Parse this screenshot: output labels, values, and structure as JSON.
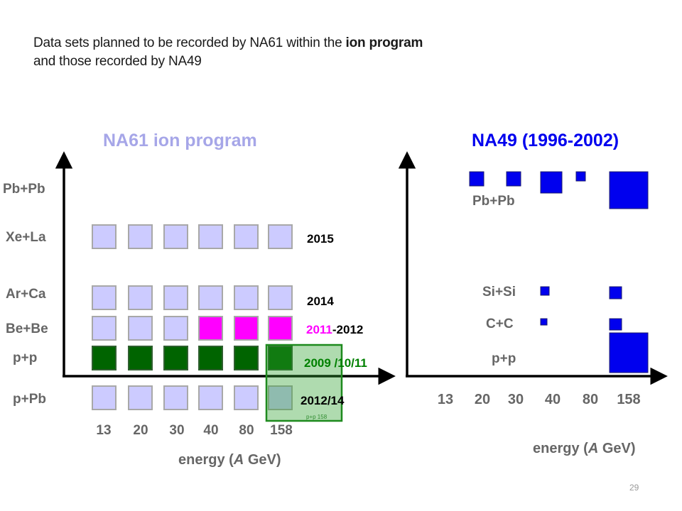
{
  "intro": {
    "line1_prefix": "Data sets planned to be recorded by NA61 within the ",
    "line1_bold": "ion program",
    "line2": "and those recorded by NA49"
  },
  "slide_number": "29",
  "colors": {
    "na61_title": "#a6a6e8",
    "planned_box_fill": "#cccbff",
    "box_border": "#a8a8a8",
    "magenta": "#ff00ff",
    "green": "#006400",
    "green_label": "#008000",
    "highlight_green": "#2e8b2e",
    "na49_blue": "#0000ee",
    "axis": "#000000",
    "label_gray": "#666666"
  },
  "na61": {
    "title": "NA61 ion program",
    "y_labels": [
      "Pb+Pb",
      "Xe+La",
      "Ar+Ca",
      "Be+Be",
      "p+p",
      "p+Pb"
    ],
    "x_labels": [
      "13",
      "20",
      "30",
      "40",
      "80",
      "158"
    ],
    "x_axis_label_prefix": "energy (",
    "x_axis_label_italic": "A",
    "x_axis_label_suffix": " GeV)",
    "rows": [
      {
        "system": "Xe+La",
        "year": "2015",
        "cells": [
          "planned",
          "planned",
          "planned",
          "planned",
          "planned",
          "planned"
        ]
      },
      {
        "system": "Ar+Ca",
        "year": "2014",
        "cells": [
          "planned",
          "planned",
          "planned",
          "planned",
          "planned",
          "planned"
        ]
      },
      {
        "system": "Be+Be",
        "year_part1": "2011",
        "year_part2": "-2012",
        "cells": [
          "planned",
          "planned",
          "planned",
          "magenta",
          "magenta",
          "magenta"
        ]
      },
      {
        "system": "p+p",
        "year": "2009 /10/11",
        "cells": [
          "green",
          "green",
          "green",
          "green",
          "green",
          "green"
        ]
      },
      {
        "system": "p+Pb",
        "year": "2012/14",
        "cells": [
          "planned",
          "planned",
          "planned",
          "planned",
          "planned",
          "planned"
        ]
      }
    ],
    "highlight_label": "p+p 158"
  },
  "na49": {
    "title": "NA49 (1996-2002)",
    "x_labels": [
      "13",
      "20",
      "30",
      "40",
      "80",
      "158"
    ],
    "x_axis_label_prefix": "energy (",
    "x_axis_label_italic": "A",
    "x_axis_label_suffix": " GeV)",
    "system_labels": [
      "Pb+Pb",
      "Si+Si",
      "C+C",
      "p+p"
    ],
    "data_points": [
      {
        "system": "Pb+Pb",
        "energy": "20",
        "size": "medium"
      },
      {
        "system": "Pb+Pb",
        "energy": "30",
        "size": "medium"
      },
      {
        "system": "Pb+Pb",
        "energy": "40",
        "size": "large"
      },
      {
        "system": "Pb+Pb",
        "energy": "80",
        "size": "small"
      },
      {
        "system": "Pb+Pb",
        "energy": "158",
        "size": "very large"
      },
      {
        "system": "Si+Si",
        "energy": "40",
        "size": "small"
      },
      {
        "system": "Si+Si",
        "energy": "158",
        "size": "medium"
      },
      {
        "system": "C+C",
        "energy": "40",
        "size": "very small"
      },
      {
        "system": "C+C",
        "energy": "158",
        "size": "medium"
      },
      {
        "system": "p+p",
        "energy": "158",
        "size": "very large"
      }
    ]
  }
}
